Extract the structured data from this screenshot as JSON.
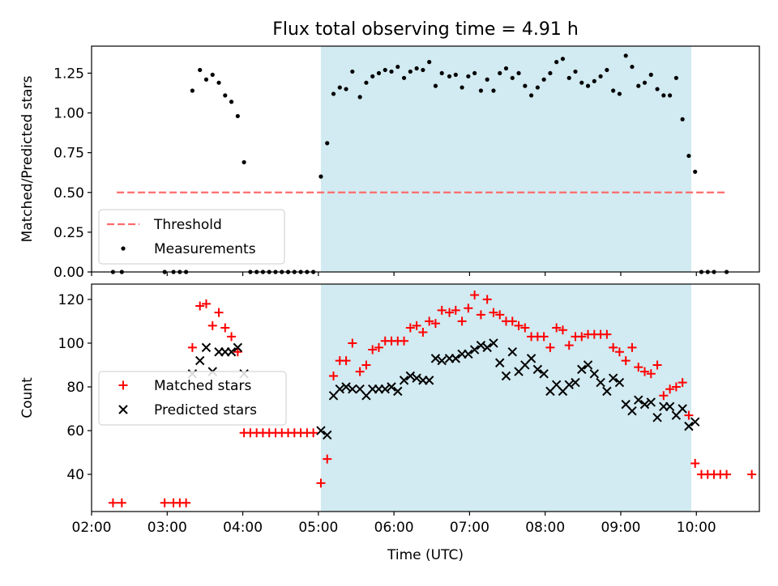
{
  "chart_data": [
    {
      "type": "scatter",
      "title": "Flux total observing time = 4.91 h",
      "xlabel": "",
      "ylabel": "Matched/Predicted stars",
      "xlim": [
        "02:00",
        "10:50"
      ],
      "ylim": [
        0,
        1.42
      ],
      "yticks": [
        0.0,
        0.25,
        0.5,
        0.75,
        1.0,
        1.25
      ],
      "ytick_labels": [
        "0.00",
        "0.25",
        "0.50",
        "0.75",
        "1.00",
        "1.25"
      ],
      "shaded_region": {
        "start": "05:02",
        "end": "09:56",
        "color": "#add8e6"
      },
      "legend": {
        "position": "lower-left",
        "entries": [
          "Threshold",
          "Measurements"
        ]
      },
      "threshold": {
        "name": "Threshold",
        "value": 0.5,
        "x_start": "02:20",
        "x_end": "10:25",
        "color": "#ff6b6b",
        "style": "dashed"
      },
      "series": [
        {
          "name": "Measurements",
          "marker": "dot",
          "color": "#000000",
          "points": [
            [
              "02:17",
              0
            ],
            [
              "02:24",
              0
            ],
            [
              "02:58",
              0
            ],
            [
              "03:05",
              0
            ],
            [
              "03:10",
              0
            ],
            [
              "03:15",
              0
            ],
            [
              "03:20",
              1.14
            ],
            [
              "03:26",
              1.27
            ],
            [
              "03:31",
              1.21
            ],
            [
              "03:36",
              1.24
            ],
            [
              "03:41",
              1.19
            ],
            [
              "03:46",
              1.11
            ],
            [
              "03:51",
              1.07
            ],
            [
              "03:56",
              0.98
            ],
            [
              "04:01",
              0.69
            ],
            [
              "04:06",
              0
            ],
            [
              "04:11",
              0
            ],
            [
              "04:16",
              0
            ],
            [
              "04:21",
              0
            ],
            [
              "04:26",
              0
            ],
            [
              "04:31",
              0
            ],
            [
              "04:36",
              0
            ],
            [
              "04:41",
              0
            ],
            [
              "04:46",
              0
            ],
            [
              "04:51",
              0
            ],
            [
              "04:56",
              0
            ],
            [
              "05:02",
              0.6
            ],
            [
              "05:07",
              0.81
            ],
            [
              "05:12",
              1.12
            ],
            [
              "05:17",
              1.16
            ],
            [
              "05:22",
              1.15
            ],
            [
              "05:27",
              1.26
            ],
            [
              "05:33",
              1.1
            ],
            [
              "05:38",
              1.19
            ],
            [
              "05:43",
              1.23
            ],
            [
              "05:48",
              1.25
            ],
            [
              "05:53",
              1.27
            ],
            [
              "05:58",
              1.26
            ],
            [
              "06:03",
              1.29
            ],
            [
              "06:08",
              1.22
            ],
            [
              "06:13",
              1.26
            ],
            [
              "06:18",
              1.28
            ],
            [
              "06:23",
              1.27
            ],
            [
              "06:28",
              1.32
            ],
            [
              "06:33",
              1.17
            ],
            [
              "06:38",
              1.25
            ],
            [
              "06:44",
              1.23
            ],
            [
              "06:49",
              1.24
            ],
            [
              "06:54",
              1.16
            ],
            [
              "06:59",
              1.23
            ],
            [
              "07:04",
              1.25
            ],
            [
              "07:09",
              1.14
            ],
            [
              "07:14",
              1.21
            ],
            [
              "07:19",
              1.14
            ],
            [
              "07:24",
              1.25
            ],
            [
              "07:29",
              1.28
            ],
            [
              "07:34",
              1.22
            ],
            [
              "07:39",
              1.25
            ],
            [
              "07:44",
              1.17
            ],
            [
              "07:49",
              1.11
            ],
            [
              "07:54",
              1.16
            ],
            [
              "07:59",
              1.21
            ],
            [
              "08:04",
              1.25
            ],
            [
              "08:09",
              1.32
            ],
            [
              "08:14",
              1.34
            ],
            [
              "08:19",
              1.22
            ],
            [
              "08:24",
              1.26
            ],
            [
              "08:29",
              1.19
            ],
            [
              "08:34",
              1.17
            ],
            [
              "08:39",
              1.2
            ],
            [
              "08:44",
              1.23
            ],
            [
              "08:49",
              1.27
            ],
            [
              "08:54",
              1.14
            ],
            [
              "08:59",
              1.12
            ],
            [
              "09:04",
              1.36
            ],
            [
              "09:09",
              1.29
            ],
            [
              "09:14",
              1.17
            ],
            [
              "09:19",
              1.19
            ],
            [
              "09:24",
              1.24
            ],
            [
              "09:29",
              1.15
            ],
            [
              "09:34",
              1.11
            ],
            [
              "09:39",
              1.11
            ],
            [
              "09:44",
              1.22
            ],
            [
              "09:49",
              0.96
            ],
            [
              "09:54",
              0.73
            ],
            [
              "09:59",
              0.63
            ],
            [
              "10:04",
              0
            ],
            [
              "10:09",
              0
            ],
            [
              "10:14",
              0
            ],
            [
              "10:24",
              0
            ]
          ]
        }
      ]
    },
    {
      "type": "scatter",
      "title": "",
      "xlabel": "Time (UTC)",
      "ylabel": "Count",
      "xlim": [
        "02:00",
        "10:50"
      ],
      "ylim": [
        23,
        127
      ],
      "yticks": [
        40,
        60,
        80,
        100,
        120
      ],
      "xticks": [
        "02:00",
        "03:00",
        "04:00",
        "05:00",
        "06:00",
        "07:00",
        "08:00",
        "09:00",
        "10:00"
      ],
      "shaded_region": {
        "start": "05:02",
        "end": "09:56",
        "color": "#add8e6"
      },
      "legend": {
        "position": "center-left",
        "entries": [
          "Matched stars",
          "Predicted stars"
        ]
      },
      "series": [
        {
          "name": "Matched stars",
          "marker": "plus",
          "color": "#ff0000",
          "points": [
            [
              "02:17",
              27
            ],
            [
              "02:24",
              27
            ],
            [
              "02:58",
              27
            ],
            [
              "03:05",
              27
            ],
            [
              "03:10",
              27
            ],
            [
              "03:15",
              27
            ],
            [
              "03:20",
              98
            ],
            [
              "03:26",
              117
            ],
            [
              "03:31",
              118
            ],
            [
              "03:36",
              108
            ],
            [
              "03:41",
              114
            ],
            [
              "03:46",
              107
            ],
            [
              "03:51",
              103
            ],
            [
              "03:56",
              96
            ],
            [
              "04:01",
              59
            ],
            [
              "04:06",
              59
            ],
            [
              "04:11",
              59
            ],
            [
              "04:16",
              59
            ],
            [
              "04:21",
              59
            ],
            [
              "04:26",
              59
            ],
            [
              "04:31",
              59
            ],
            [
              "04:36",
              59
            ],
            [
              "04:41",
              59
            ],
            [
              "04:46",
              59
            ],
            [
              "04:51",
              59
            ],
            [
              "04:56",
              59
            ],
            [
              "05:02",
              36
            ],
            [
              "05:07",
              47
            ],
            [
              "05:12",
              85
            ],
            [
              "05:17",
              92
            ],
            [
              "05:22",
              92
            ],
            [
              "05:27",
              100
            ],
            [
              "05:33",
              87
            ],
            [
              "05:38",
              90
            ],
            [
              "05:43",
              97
            ],
            [
              "05:48",
              98
            ],
            [
              "05:53",
              101
            ],
            [
              "05:58",
              101
            ],
            [
              "06:03",
              101
            ],
            [
              "06:08",
              101
            ],
            [
              "06:13",
              107
            ],
            [
              "06:18",
              108
            ],
            [
              "06:23",
              105
            ],
            [
              "06:28",
              110
            ],
            [
              "06:33",
              109
            ],
            [
              "06:38",
              115
            ],
            [
              "06:44",
              114
            ],
            [
              "06:49",
              115
            ],
            [
              "06:54",
              110
            ],
            [
              "06:59",
              116
            ],
            [
              "07:04",
              122
            ],
            [
              "07:09",
              113
            ],
            [
              "07:14",
              120
            ],
            [
              "07:19",
              114
            ],
            [
              "07:24",
              113
            ],
            [
              "07:29",
              110
            ],
            [
              "07:34",
              110
            ],
            [
              "07:39",
              108
            ],
            [
              "07:44",
              107
            ],
            [
              "07:49",
              103
            ],
            [
              "07:54",
              103
            ],
            [
              "07:59",
              103
            ],
            [
              "08:04",
              98
            ],
            [
              "08:09",
              107
            ],
            [
              "08:14",
              106
            ],
            [
              "08:19",
              99
            ],
            [
              "08:24",
              103
            ],
            [
              "08:29",
              103
            ],
            [
              "08:34",
              104
            ],
            [
              "08:39",
              104
            ],
            [
              "08:44",
              104
            ],
            [
              "08:49",
              104
            ],
            [
              "08:54",
              98
            ],
            [
              "08:59",
              96
            ],
            [
              "09:04",
              92
            ],
            [
              "09:09",
              98
            ],
            [
              "09:14",
              89
            ],
            [
              "09:19",
              87
            ],
            [
              "09:24",
              86
            ],
            [
              "09:29",
              90
            ],
            [
              "09:34",
              76
            ],
            [
              "09:39",
              79
            ],
            [
              "09:44",
              80
            ],
            [
              "09:49",
              82
            ],
            [
              "09:54",
              67
            ],
            [
              "09:59",
              45
            ],
            [
              "10:04",
              40
            ],
            [
              "10:09",
              40
            ],
            [
              "10:14",
              40
            ],
            [
              "10:19",
              40
            ],
            [
              "10:24",
              40
            ],
            [
              "10:44",
              40
            ]
          ]
        },
        {
          "name": "Predicted stars",
          "marker": "x",
          "color": "#000000",
          "points": [
            [
              "03:20",
              86
            ],
            [
              "03:26",
              92
            ],
            [
              "03:31",
              98
            ],
            [
              "03:36",
              87
            ],
            [
              "03:41",
              96
            ],
            [
              "03:46",
              96
            ],
            [
              "03:51",
              96
            ],
            [
              "03:56",
              98
            ],
            [
              "04:01",
              86
            ],
            [
              "05:02",
              60
            ],
            [
              "05:07",
              58
            ],
            [
              "05:12",
              76
            ],
            [
              "05:17",
              79
            ],
            [
              "05:22",
              80
            ],
            [
              "05:27",
              79
            ],
            [
              "05:33",
              79
            ],
            [
              "05:38",
              76
            ],
            [
              "05:43",
              79
            ],
            [
              "05:48",
              79
            ],
            [
              "05:53",
              79
            ],
            [
              "05:58",
              80
            ],
            [
              "06:03",
              78
            ],
            [
              "06:08",
              83
            ],
            [
              "06:13",
              85
            ],
            [
              "06:18",
              84
            ],
            [
              "06:23",
              83
            ],
            [
              "06:28",
              83
            ],
            [
              "06:33",
              93
            ],
            [
              "06:38",
              92
            ],
            [
              "06:44",
              93
            ],
            [
              "06:49",
              93
            ],
            [
              "06:54",
              95
            ],
            [
              "06:59",
              95
            ],
            [
              "07:04",
              97
            ],
            [
              "07:09",
              99
            ],
            [
              "07:14",
              98
            ],
            [
              "07:19",
              100
            ],
            [
              "07:24",
              91
            ],
            [
              "07:29",
              85
            ],
            [
              "07:34",
              96
            ],
            [
              "07:39",
              87
            ],
            [
              "07:44",
              90
            ],
            [
              "07:49",
              93
            ],
            [
              "07:54",
              88
            ],
            [
              "07:59",
              86
            ],
            [
              "08:04",
              78
            ],
            [
              "08:09",
              81
            ],
            [
              "08:14",
              78
            ],
            [
              "08:19",
              81
            ],
            [
              "08:24",
              82
            ],
            [
              "08:29",
              88
            ],
            [
              "08:34",
              90
            ],
            [
              "08:39",
              86
            ],
            [
              "08:44",
              82
            ],
            [
              "08:49",
              78
            ],
            [
              "08:54",
              84
            ],
            [
              "08:59",
              82
            ],
            [
              "09:04",
              72
            ],
            [
              "09:09",
              69
            ],
            [
              "09:14",
              74
            ],
            [
              "09:19",
              72
            ],
            [
              "09:24",
              73
            ],
            [
              "09:29",
              66
            ],
            [
              "09:34",
              71
            ],
            [
              "09:39",
              71
            ],
            [
              "09:44",
              67
            ],
            [
              "09:49",
              70
            ],
            [
              "09:54",
              62
            ],
            [
              "09:59",
              64
            ]
          ]
        }
      ]
    }
  ]
}
